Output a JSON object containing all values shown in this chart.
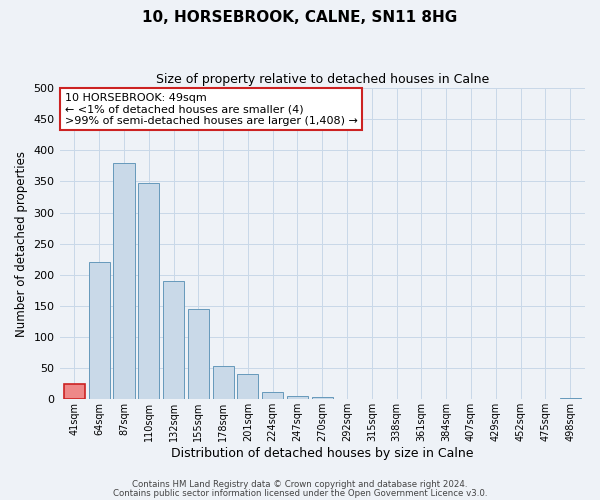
{
  "title": "10, HORSEBROOK, CALNE, SN11 8HG",
  "subtitle": "Size of property relative to detached houses in Calne",
  "xlabel": "Distribution of detached houses by size in Calne",
  "ylabel": "Number of detached properties",
  "bin_labels": [
    "41sqm",
    "64sqm",
    "87sqm",
    "110sqm",
    "132sqm",
    "155sqm",
    "178sqm",
    "201sqm",
    "224sqm",
    "247sqm",
    "270sqm",
    "292sqm",
    "315sqm",
    "338sqm",
    "361sqm",
    "384sqm",
    "407sqm",
    "429sqm",
    "452sqm",
    "475sqm",
    "498sqm"
  ],
  "bar_values": [
    25,
    220,
    380,
    347,
    190,
    145,
    53,
    40,
    11,
    6,
    4,
    0,
    0,
    0,
    0,
    1,
    0,
    0,
    0,
    0,
    2
  ],
  "bar_color_fill": "#c9d9e8",
  "bar_color_edge": "#6699bb",
  "highlight_bar_index": 0,
  "highlight_bar_color_fill": "#ee8888",
  "highlight_bar_color_edge": "#cc2222",
  "annotation_box_text": "10 HORSEBROOK: 49sqm\n← <1% of detached houses are smaller (4)\n>99% of semi-detached houses are larger (1,408) →",
  "annotation_box_edgecolor": "#cc2222",
  "annotation_box_facecolor": "#ffffff",
  "ylim": [
    0,
    500
  ],
  "yticks": [
    0,
    50,
    100,
    150,
    200,
    250,
    300,
    350,
    400,
    450,
    500
  ],
  "grid_color": "#c8d8e8",
  "bg_color": "#eef2f7",
  "footer_line1": "Contains HM Land Registry data © Crown copyright and database right 2024.",
  "footer_line2": "Contains public sector information licensed under the Open Government Licence v3.0."
}
